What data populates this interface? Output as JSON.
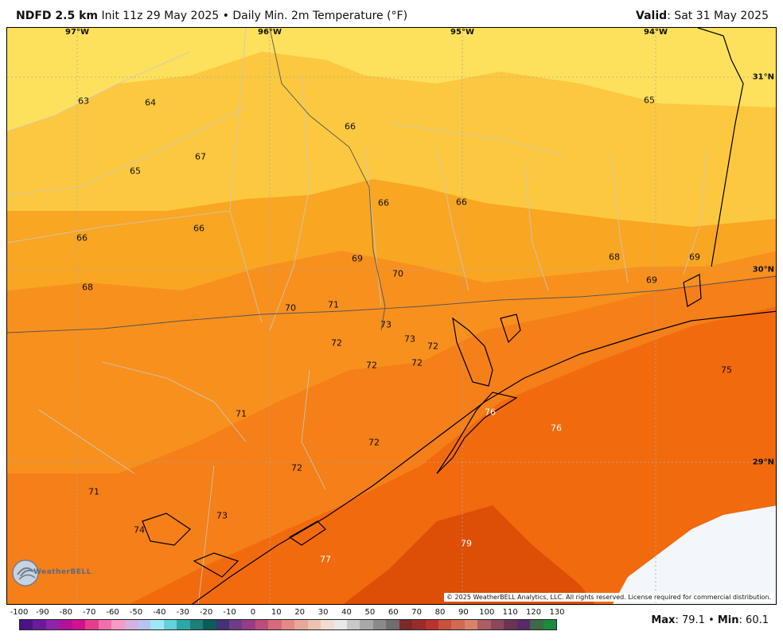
{
  "header": {
    "product": "NDFD 2.5 km",
    "init": "Init 11z 29 May 2025",
    "bullet": "•",
    "field": "Daily Min. 2m Temperature (°F)",
    "valid_label": "Valid",
    "valid_value": ": Sat 31 May 2025"
  },
  "graticule": {
    "lon_labels": [
      "97°W",
      "96°W",
      "95°W",
      "94°W"
    ],
    "lat_labels": [
      "31°N",
      "30°N",
      "29°N"
    ]
  },
  "values": [
    {
      "v": "63"
    },
    {
      "v": "64"
    },
    {
      "v": "66"
    },
    {
      "v": "65"
    },
    {
      "v": "67"
    },
    {
      "v": "65"
    },
    {
      "v": "66"
    },
    {
      "v": "66"
    },
    {
      "v": "66"
    },
    {
      "v": "66"
    },
    {
      "v": "69"
    },
    {
      "v": "70"
    },
    {
      "v": "68"
    },
    {
      "v": "68"
    },
    {
      "v": "69"
    },
    {
      "v": "69"
    },
    {
      "v": "70"
    },
    {
      "v": "71"
    },
    {
      "v": "73"
    },
    {
      "v": "73"
    },
    {
      "v": "72"
    },
    {
      "v": "72"
    },
    {
      "v": "72"
    },
    {
      "v": "72"
    },
    {
      "v": "75"
    },
    {
      "v": "76"
    },
    {
      "v": "76"
    },
    {
      "v": "71"
    },
    {
      "v": "72"
    },
    {
      "v": "72"
    },
    {
      "v": "71"
    },
    {
      "v": "73"
    },
    {
      "v": "74"
    },
    {
      "v": "77"
    },
    {
      "v": "79"
    }
  ],
  "copyright": "© 2025 WeatherBELL Analytics, LLC. All rights reserved. License required for commercial distribution.",
  "logo_text": "WeatherBELL",
  "colorbar": {
    "ticks": [
      "-100",
      "-90",
      "-80",
      "-70",
      "-60",
      "-50",
      "-40",
      "-30",
      "-20",
      "-10",
      "0",
      "10",
      "20",
      "30",
      "40",
      "50",
      "60",
      "70",
      "80",
      "90",
      "100",
      "110",
      "120",
      "130"
    ]
  },
  "stats": {
    "max_label": "Max",
    "max_value": ": 79.1",
    "bullet": "•",
    "min_label": "Min",
    "min_value": ": 60.1"
  }
}
